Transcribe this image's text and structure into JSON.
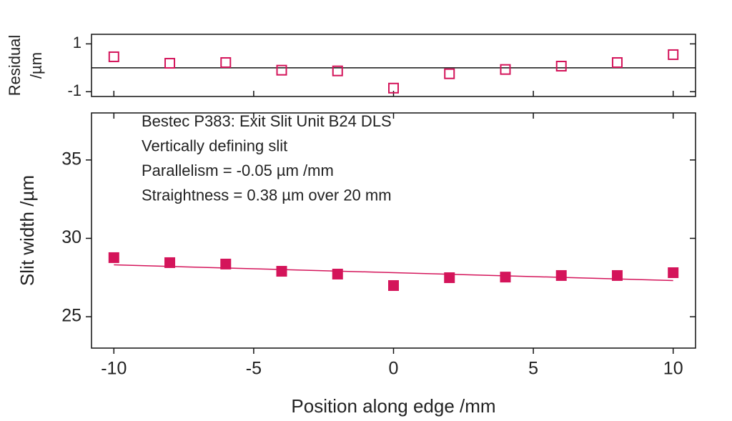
{
  "chart_data": [
    {
      "type": "scatter",
      "ylabel": [
        "Residual",
        "/µm"
      ],
      "x": [
        -10,
        -8,
        -6,
        -4,
        -2,
        0,
        2,
        4,
        6,
        8,
        10
      ],
      "series": [
        {
          "color": "#d4145a",
          "marker": "open-square",
          "values": [
            0.46,
            0.19,
            0.22,
            -0.1,
            -0.13,
            -0.85,
            -0.25,
            -0.07,
            0.07,
            0.22,
            0.55
          ]
        }
      ],
      "hline": 0,
      "xlim": [
        -10.8,
        10.8
      ],
      "xticks": [
        -10,
        -5,
        0,
        5,
        10
      ],
      "ylim": [
        -1.2,
        1.4
      ],
      "yticks": [
        -1,
        1
      ]
    },
    {
      "type": "scatter",
      "xlabel": "Position along edge /mm",
      "ylabel": "Slit width /µm",
      "annotations": [
        "Bestec P383: Exit Slit Unit B24 DLS",
        "Vertically defining slit",
        "Parallelism = -0.05 µm /mm",
        "Straightness = 0.38 µm over 20 mm"
      ],
      "x": [
        -10,
        -8,
        -6,
        -4,
        -2,
        0,
        2,
        4,
        6,
        8,
        10
      ],
      "series": [
        {
          "color": "#d4145a",
          "marker": "filled-square",
          "values": [
            28.77,
            28.45,
            28.36,
            27.9,
            27.72,
            26.99,
            27.49,
            27.53,
            27.63,
            27.63,
            27.81
          ]
        }
      ],
      "fit": {
        "color": "#d4145a",
        "x": [
          -10,
          10
        ],
        "values": [
          28.31,
          27.31
        ]
      },
      "xlim": [
        -10.8,
        10.8
      ],
      "xticks": [
        -10,
        -5,
        0,
        5,
        10
      ],
      "ylim": [
        23,
        38
      ],
      "yticks": [
        25,
        30,
        35
      ]
    }
  ]
}
